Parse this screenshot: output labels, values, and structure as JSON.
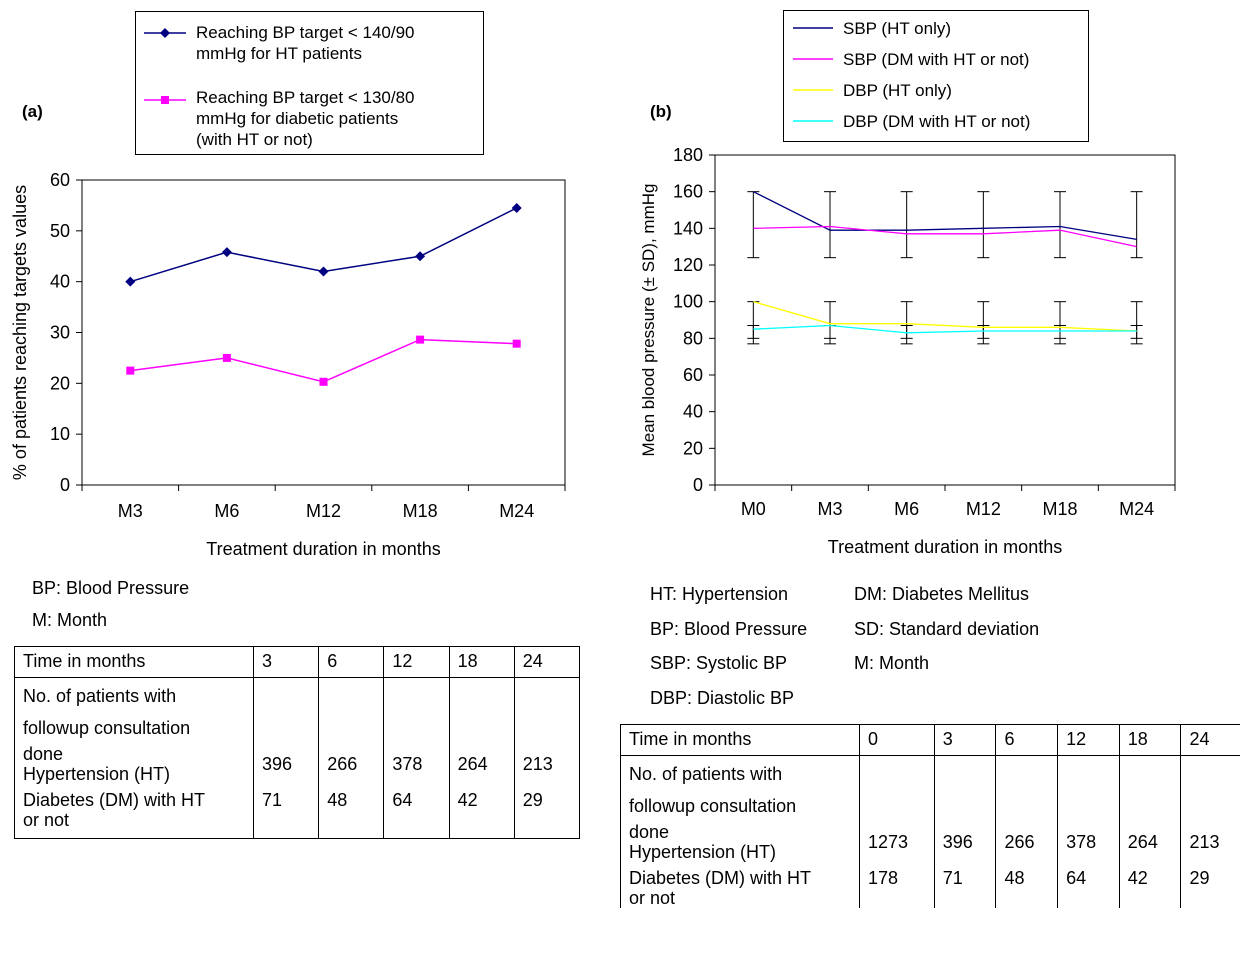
{
  "panel_a": {
    "label": "(a)",
    "legend": [
      "Reaching BP target < 140/90 mmHg for HT patients",
      "Reaching BP target < 130/80 mmHg for diabetic patients (with HT or not)"
    ],
    "legend_lines": [
      [
        "Reaching BP target < 140/90",
        "mmHg for HT patients"
      ],
      [
        "Reaching BP target < 130/80",
        "mmHg for diabetic patients",
        "(with HT or not)"
      ]
    ],
    "notes": [
      "BP: Blood Pressure",
      "M: Month"
    ],
    "table": {
      "header": [
        "Time in months",
        "3",
        "6",
        "12",
        "18",
        "24"
      ],
      "row_label_lines": [
        "No. of patients with",
        "followup consultation",
        "done"
      ],
      "rows": [
        {
          "label": "Hypertension (HT)",
          "values": [
            "396",
            "266",
            "378",
            "264",
            "213"
          ]
        },
        {
          "label_lines": [
            "Diabetes (DM) with HT",
            "or not"
          ],
          "values": [
            "71",
            "48",
            "64",
            "42",
            "29"
          ]
        }
      ]
    }
  },
  "panel_b": {
    "label": "(b)",
    "notes": [
      [
        "HT: Hypertension",
        "DM: Diabetes Mellitus"
      ],
      [
        "BP: Blood Pressure",
        "SD: Standard deviation"
      ],
      [
        "SBP: Systolic BP",
        "M: Month"
      ],
      [
        "DBP: Diastolic BP",
        ""
      ]
    ],
    "table": {
      "header": [
        "Time in months",
        "0",
        "3",
        "6",
        "12",
        "18",
        "24"
      ],
      "row_label_lines": [
        "No. of patients with",
        "followup consultation",
        "done"
      ],
      "rows": [
        {
          "label": "Hypertension (HT)",
          "values": [
            "1273",
            "396",
            "266",
            "378",
            "264",
            "213"
          ]
        },
        {
          "label_lines": [
            "Diabetes (DM) with HT",
            "or not"
          ],
          "values": [
            "178",
            "71",
            "48",
            "64",
            "42",
            "29"
          ]
        }
      ]
    }
  },
  "chart_data": [
    {
      "type": "line",
      "categories": [
        "M3",
        "M6",
        "M12",
        "M18",
        "M24"
      ],
      "series": [
        {
          "name": "Reaching BP target < 140/90 mmHg for HT patients",
          "values": [
            40,
            45.8,
            42,
            45,
            54.5
          ],
          "color": "#000080",
          "marker": "diamond"
        },
        {
          "name": "Reaching BP target < 130/80 mmHg for diabetic patients (with HT or not)",
          "values": [
            22.5,
            25,
            20.3,
            28.6,
            27.8
          ],
          "color": "#ff00ff",
          "marker": "square"
        }
      ],
      "xlabel": "Treatment duration in months",
      "ylabel": "% of patients reaching targets values",
      "ylim": [
        0,
        60
      ],
      "yticks": [
        "0",
        "10",
        "20",
        "30",
        "40",
        "50",
        "60"
      ],
      "grid": false,
      "legend": "top"
    },
    {
      "type": "line",
      "categories": [
        "M0",
        "M3",
        "M6",
        "M12",
        "M18",
        "M24"
      ],
      "series": [
        {
          "name": "SBP (HT only)",
          "values": [
            160,
            139,
            139,
            140,
            141,
            134
          ],
          "color": "#000080"
        },
        {
          "name": "SBP (DM with HT or not)",
          "values": [
            140,
            141,
            137,
            137,
            139,
            130
          ],
          "color": "#ff00ff"
        },
        {
          "name": "DBP (HT only)",
          "values": [
            100,
            88,
            88,
            86,
            86,
            84
          ],
          "color": "#ffff00"
        },
        {
          "name": "DBP (DM with HT or not)",
          "values": [
            85,
            87,
            83,
            84,
            84,
            84
          ],
          "color": "#00ffff"
        }
      ],
      "error_bars": [
        {
          "center": 142,
          "low": 124,
          "high": 160
        },
        {
          "center": 88,
          "low": 77,
          "high": 100
        },
        {
          "center": 82,
          "low": 80,
          "high": 87
        }
      ],
      "xlabel": "Treatment duration in months",
      "ylabel": "Mean blood pressure (± SD), mmHg",
      "ylim": [
        0,
        180
      ],
      "yticks": [
        "0",
        "20",
        "40",
        "60",
        "80",
        "100",
        "120",
        "140",
        "160",
        "180"
      ],
      "grid": false,
      "legend": "top"
    }
  ]
}
